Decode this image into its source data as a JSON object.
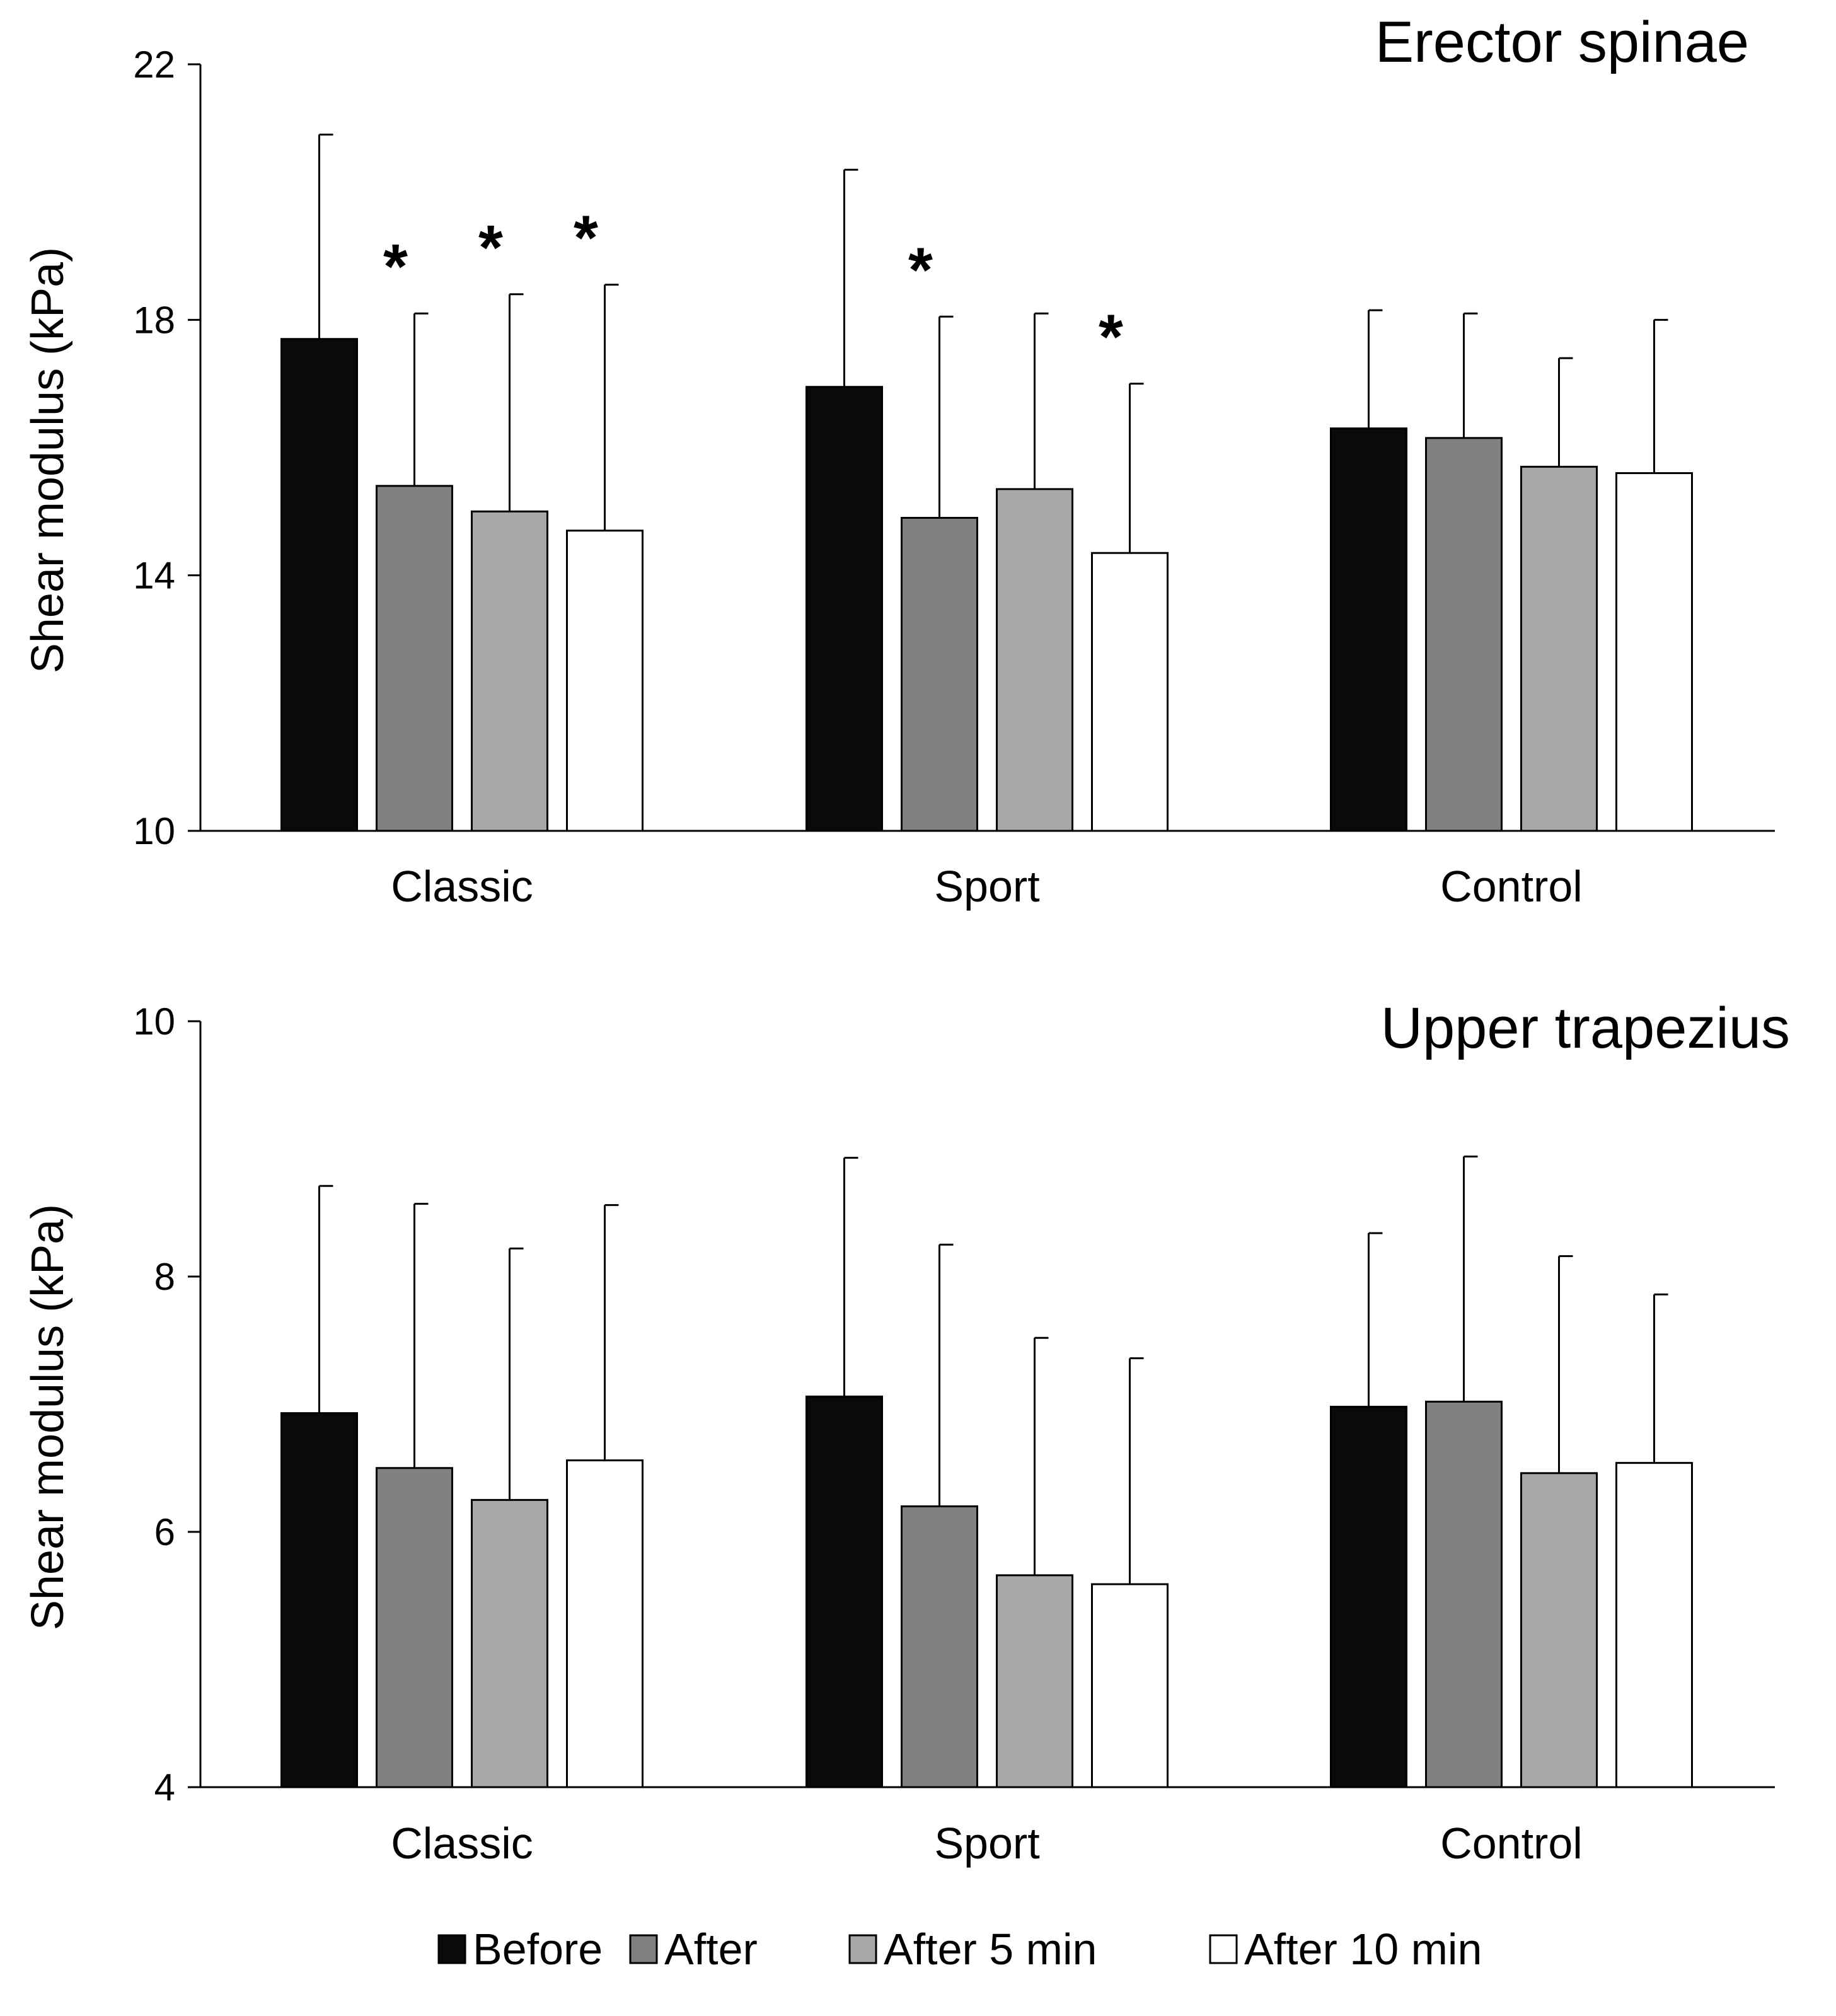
{
  "chart_data": [
    {
      "type": "bar",
      "title": "Erector spinae",
      "ylabel": "Shear modulus (kPa)",
      "xlabel": "",
      "ylim": [
        10,
        22
      ],
      "yticks": [
        10,
        14,
        18,
        22
      ],
      "categories": [
        "Classic",
        "Sport",
        "Control"
      ],
      "series": [
        {
          "name": "Before",
          "values": [
            17.7,
            16.95,
            16.3
          ],
          "errors": [
            3.2,
            3.4,
            1.85
          ],
          "significant": [
            false,
            false,
            false
          ]
        },
        {
          "name": "After",
          "values": [
            15.4,
            14.9,
            16.15
          ],
          "errors": [
            2.7,
            3.15,
            1.95
          ],
          "significant": [
            true,
            true,
            false
          ]
        },
        {
          "name": "After 5 min",
          "values": [
            15.0,
            15.35,
            15.7
          ],
          "errors": [
            3.4,
            2.75,
            1.7
          ],
          "significant": [
            true,
            false,
            false
          ]
        },
        {
          "name": "After 10 min",
          "values": [
            14.7,
            14.35,
            15.6
          ],
          "errors": [
            3.85,
            2.65,
            2.4
          ],
          "significant": [
            true,
            true,
            false
          ]
        }
      ],
      "significance_marker": "*"
    },
    {
      "type": "bar",
      "title": "Upper trapezius",
      "ylabel": "Shear modulus (kPa)",
      "xlabel": "",
      "ylim": [
        4,
        10
      ],
      "yticks": [
        4,
        6,
        8,
        10
      ],
      "categories": [
        "Classic",
        "Sport",
        "Control"
      ],
      "series": [
        {
          "name": "Before",
          "values": [
            6.93,
            7.06,
            6.98
          ],
          "errors": [
            1.78,
            1.87,
            1.36
          ],
          "significant": [
            false,
            false,
            false
          ]
        },
        {
          "name": "After",
          "values": [
            6.5,
            6.2,
            7.02
          ],
          "errors": [
            2.07,
            2.05,
            1.92
          ],
          "significant": [
            false,
            false,
            false
          ]
        },
        {
          "name": "After 5 min",
          "values": [
            6.25,
            5.66,
            6.46
          ],
          "errors": [
            1.97,
            1.86,
            1.7
          ],
          "significant": [
            false,
            false,
            false
          ]
        },
        {
          "name": "After 10 min",
          "values": [
            6.56,
            5.59,
            6.54
          ],
          "errors": [
            2.0,
            1.77,
            1.32
          ],
          "significant": [
            false,
            false,
            false
          ]
        }
      ],
      "significance_marker": "*"
    }
  ],
  "legend": {
    "items": [
      {
        "label": "Before",
        "color": "#0a0a0a"
      },
      {
        "label": "After",
        "color": "#808080"
      },
      {
        "label": "After 5 min",
        "color": "#a8a8a8"
      },
      {
        "label": "After 10 min",
        "color": "#ffffff"
      }
    ]
  }
}
